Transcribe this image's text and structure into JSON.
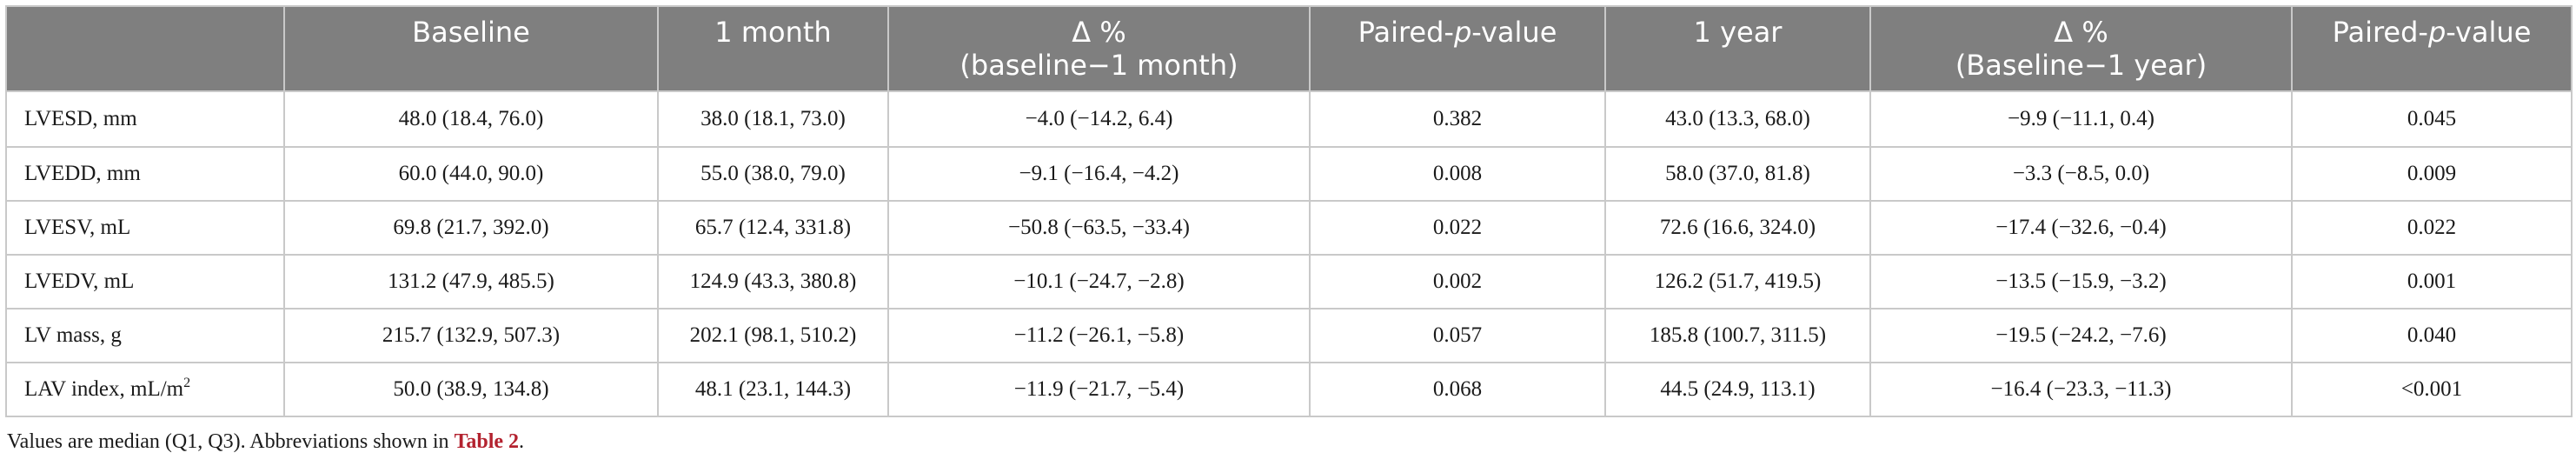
{
  "table": {
    "headers": [
      {
        "line1": "",
        "line2": ""
      },
      {
        "line1": "Baseline",
        "line2": ""
      },
      {
        "line1": "1 month",
        "line2": ""
      },
      {
        "line1": "Δ %",
        "line2": "(baseline−1 month)"
      },
      {
        "line1_pre": "Paired-",
        "line1_ital": "p",
        "line1_post": "-value"
      },
      {
        "line1": "1 year",
        "line2": ""
      },
      {
        "line1": "Δ %",
        "line2": "(Baseline−1 year)"
      },
      {
        "line1_pre": "Paired-",
        "line1_ital": "p",
        "line1_post": "-value"
      }
    ],
    "rows": [
      {
        "label": "LVESD, mm",
        "label_sup": "",
        "cells": [
          "48.0 (18.4, 76.0)",
          "38.0 (18.1, 73.0)",
          "−4.0 (−14.2, 6.4)",
          "0.382",
          "43.0 (13.3, 68.0)",
          "−9.9 (−11.1, 0.4)",
          "0.045"
        ]
      },
      {
        "label": "LVEDD, mm",
        "label_sup": "",
        "cells": [
          "60.0 (44.0, 90.0)",
          "55.0 (38.0, 79.0)",
          "−9.1 (−16.4, −4.2)",
          "0.008",
          "58.0 (37.0, 81.8)",
          "−3.3 (−8.5, 0.0)",
          "0.009"
        ]
      },
      {
        "label": "LVESV, mL",
        "label_sup": "",
        "cells": [
          "69.8 (21.7, 392.0)",
          "65.7 (12.4, 331.8)",
          "−50.8 (−63.5, −33.4)",
          "0.022",
          "72.6 (16.6, 324.0)",
          "−17.4 (−32.6, −0.4)",
          "0.022"
        ]
      },
      {
        "label": "LVEDV, mL",
        "label_sup": "",
        "cells": [
          "131.2 (47.9, 485.5)",
          "124.9 (43.3, 380.8)",
          "−10.1 (−24.7, −2.8)",
          "0.002",
          "126.2 (51.7, 419.5)",
          "−13.5 (−15.9, −3.2)",
          "0.001"
        ]
      },
      {
        "label": "LV mass, g",
        "label_sup": "",
        "cells": [
          "215.7 (132.9, 507.3)",
          "202.1 (98.1, 510.2)",
          "−11.2 (−26.1, −5.8)",
          "0.057",
          "185.8 (100.7, 311.5)",
          "−19.5 (−24.2, −7.6)",
          "0.040"
        ]
      },
      {
        "label": "LAV index, mL/m",
        "label_sup": "2",
        "cells": [
          "50.0 (38.9, 134.8)",
          "48.1 (23.1, 144.3)",
          "−11.9 (−21.7, −5.4)",
          "0.068",
          "44.5 (24.9, 113.1)",
          "−16.4 (−23.3, −11.3)",
          "<0.001"
        ]
      }
    ]
  },
  "footnote": {
    "text": "Values are median (Q1, Q3). Abbreviations shown in ",
    "link": "Table 2",
    "end": "."
  },
  "colors": {
    "header_bg": "#7f7f7f",
    "link": "#b3222f"
  }
}
